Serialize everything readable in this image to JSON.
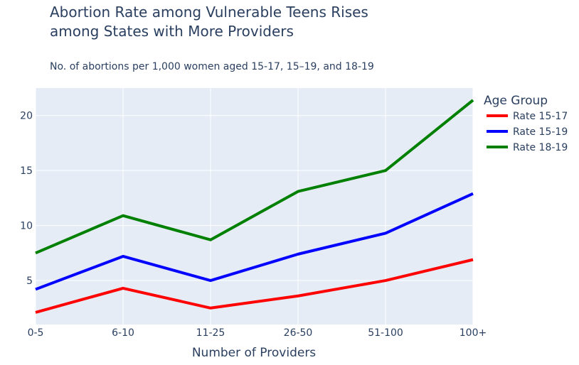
{
  "chart_data": {
    "type": "line",
    "title_lines": [
      "Abortion Rate among Vulnerable Teens Rises",
      "among States with More Providers"
    ],
    "subtitle": "No. of abortions per 1,000 women aged 15-17, 15–19, and 18-19",
    "xlabel": "Number of Providers",
    "ylabel": "",
    "categories": [
      "0-5",
      "6-10",
      "11-25",
      "26-50",
      "51-100",
      "100+"
    ],
    "yticks": [
      5,
      10,
      15,
      20
    ],
    "ylim": [
      1,
      22.5
    ],
    "grid": true,
    "legend": {
      "title": "Age Group",
      "placement": "right-top"
    },
    "series": [
      {
        "name": "Rate 15-17",
        "color": "#ff0000",
        "values": [
          2.1,
          4.3,
          2.5,
          3.6,
          5.0,
          6.9
        ]
      },
      {
        "name": "Rate 15-19",
        "color": "#0000ff",
        "values": [
          4.2,
          7.2,
          5.0,
          7.4,
          9.3,
          12.9
        ]
      },
      {
        "name": "Rate 18-19",
        "color": "#008000",
        "values": [
          7.5,
          10.9,
          8.7,
          13.1,
          15.0,
          21.4
        ]
      }
    ]
  }
}
